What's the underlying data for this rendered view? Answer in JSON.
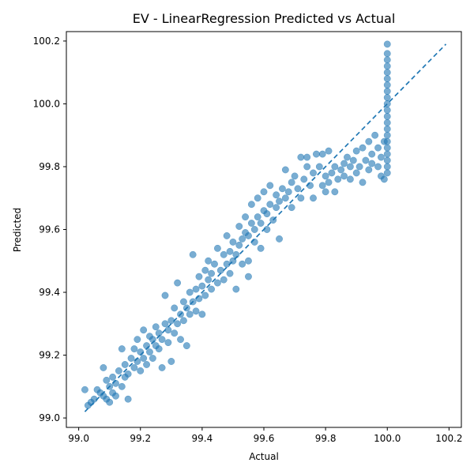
{
  "chart_data": {
    "type": "scatter",
    "title": "EV - LinearRegression Predicted vs Actual",
    "xlabel": "Actual",
    "ylabel": "Predicted",
    "xlim": [
      98.96,
      100.24
    ],
    "ylim": [
      98.97,
      100.23
    ],
    "xticks": [
      "99.0",
      "99.2",
      "99.4",
      "99.6",
      "99.8",
      "100.0",
      "100.2"
    ],
    "yticks": [
      "99.0",
      "99.2",
      "99.4",
      "99.6",
      "99.8",
      "100.0",
      "100.2"
    ],
    "grid": false,
    "colors": {
      "points": "#1f77b4",
      "reference_line": "#1f77b4"
    },
    "reference_line": {
      "style": "dashed",
      "from": [
        99.02,
        99.02
      ],
      "to": [
        100.19,
        100.19
      ]
    },
    "series": [
      {
        "points": [
          [
            99.02,
            99.09
          ],
          [
            99.03,
            99.04
          ],
          [
            99.04,
            99.05
          ],
          [
            99.05,
            99.06
          ],
          [
            99.06,
            99.09
          ],
          [
            99.07,
            99.08
          ],
          [
            99.08,
            99.07
          ],
          [
            99.08,
            99.16
          ],
          [
            99.09,
            99.06
          ],
          [
            99.09,
            99.12
          ],
          [
            99.1,
            99.05
          ],
          [
            99.1,
            99.1
          ],
          [
            99.11,
            99.08
          ],
          [
            99.11,
            99.13
          ],
          [
            99.12,
            99.07
          ],
          [
            99.12,
            99.11
          ],
          [
            99.13,
            99.15
          ],
          [
            99.14,
            99.1
          ],
          [
            99.14,
            99.22
          ],
          [
            99.15,
            99.13
          ],
          [
            99.15,
            99.17
          ],
          [
            99.16,
            99.06
          ],
          [
            99.16,
            99.14
          ],
          [
            99.17,
            99.19
          ],
          [
            99.18,
            99.16
          ],
          [
            99.18,
            99.22
          ],
          [
            99.19,
            99.18
          ],
          [
            99.19,
            99.25
          ],
          [
            99.2,
            99.15
          ],
          [
            99.2,
            99.21
          ],
          [
            99.21,
            99.19
          ],
          [
            99.21,
            99.28
          ],
          [
            99.22,
            99.17
          ],
          [
            99.22,
            99.23
          ],
          [
            99.23,
            99.21
          ],
          [
            99.23,
            99.26
          ],
          [
            99.24,
            99.19
          ],
          [
            99.24,
            99.25
          ],
          [
            99.25,
            99.23
          ],
          [
            99.25,
            99.29
          ],
          [
            99.26,
            99.22
          ],
          [
            99.26,
            99.27
          ],
          [
            99.27,
            99.16
          ],
          [
            99.27,
            99.25
          ],
          [
            99.28,
            99.3
          ],
          [
            99.28,
            99.39
          ],
          [
            99.29,
            99.24
          ],
          [
            99.29,
            99.28
          ],
          [
            99.3,
            99.18
          ],
          [
            99.3,
            99.31
          ],
          [
            99.31,
            99.27
          ],
          [
            99.31,
            99.35
          ],
          [
            99.32,
            99.3
          ],
          [
            99.32,
            99.43
          ],
          [
            99.33,
            99.25
          ],
          [
            99.33,
            99.33
          ],
          [
            99.34,
            99.31
          ],
          [
            99.34,
            99.37
          ],
          [
            99.35,
            99.23
          ],
          [
            99.35,
            99.35
          ],
          [
            99.36,
            99.33
          ],
          [
            99.36,
            99.4
          ],
          [
            99.37,
            99.52
          ],
          [
            99.37,
            99.37
          ],
          [
            99.38,
            99.34
          ],
          [
            99.38,
            99.41
          ],
          [
            99.39,
            99.38
          ],
          [
            99.39,
            99.45
          ],
          [
            99.4,
            99.33
          ],
          [
            99.4,
            99.42
          ],
          [
            99.41,
            99.39
          ],
          [
            99.41,
            99.47
          ],
          [
            99.42,
            99.44
          ],
          [
            99.42,
            99.5
          ],
          [
            99.43,
            99.41
          ],
          [
            99.43,
            99.46
          ],
          [
            99.44,
            99.49
          ],
          [
            99.45,
            99.43
          ],
          [
            99.45,
            99.54
          ],
          [
            99.46,
            99.47
          ],
          [
            99.47,
            99.44
          ],
          [
            99.47,
            99.52
          ],
          [
            99.48,
            99.49
          ],
          [
            99.48,
            99.58
          ],
          [
            99.49,
            99.46
          ],
          [
            99.49,
            99.53
          ],
          [
            99.5,
            99.5
          ],
          [
            99.5,
            99.56
          ],
          [
            99.51,
            99.41
          ],
          [
            99.51,
            99.52
          ],
          [
            99.52,
            99.55
          ],
          [
            99.52,
            99.61
          ],
          [
            99.53,
            99.49
          ],
          [
            99.53,
            99.57
          ],
          [
            99.54,
            99.59
          ],
          [
            99.54,
            99.64
          ],
          [
            99.55,
            99.45
          ],
          [
            99.55,
            99.5
          ],
          [
            99.55,
            99.58
          ],
          [
            99.56,
            99.62
          ],
          [
            99.56,
            99.68
          ],
          [
            99.57,
            99.56
          ],
          [
            99.57,
            99.6
          ],
          [
            99.58,
            99.64
          ],
          [
            99.58,
            99.7
          ],
          [
            99.59,
            99.54
          ],
          [
            99.59,
            99.62
          ],
          [
            99.6,
            99.66
          ],
          [
            99.6,
            99.72
          ],
          [
            99.61,
            99.6
          ],
          [
            99.61,
            99.65
          ],
          [
            99.62,
            99.68
          ],
          [
            99.62,
            99.74
          ],
          [
            99.63,
            99.63
          ],
          [
            99.64,
            99.67
          ],
          [
            99.64,
            99.71
          ],
          [
            99.65,
            99.57
          ],
          [
            99.65,
            99.69
          ],
          [
            99.66,
            99.73
          ],
          [
            99.67,
            99.79
          ],
          [
            99.67,
            99.7
          ],
          [
            99.68,
            99.72
          ],
          [
            99.69,
            99.67
          ],
          [
            99.69,
            99.75
          ],
          [
            99.7,
            99.77
          ],
          [
            99.71,
            99.73
          ],
          [
            99.72,
            99.83
          ],
          [
            99.72,
            99.7
          ],
          [
            99.73,
            99.76
          ],
          [
            99.74,
            99.8
          ],
          [
            99.74,
            99.83
          ],
          [
            99.75,
            99.74
          ],
          [
            99.76,
            99.7
          ],
          [
            99.76,
            99.78
          ],
          [
            99.77,
            99.84
          ],
          [
            99.78,
            99.8
          ],
          [
            99.79,
            99.74
          ],
          [
            99.79,
            99.84
          ],
          [
            99.8,
            99.72
          ],
          [
            99.8,
            99.77
          ],
          [
            99.81,
            99.75
          ],
          [
            99.81,
            99.85
          ],
          [
            99.82,
            99.78
          ],
          [
            99.83,
            99.72
          ],
          [
            99.83,
            99.8
          ],
          [
            99.84,
            99.76
          ],
          [
            99.85,
            99.79
          ],
          [
            99.86,
            99.81
          ],
          [
            99.86,
            99.77
          ],
          [
            99.87,
            99.83
          ],
          [
            99.88,
            99.76
          ],
          [
            99.88,
            99.8
          ],
          [
            99.89,
            99.82
          ],
          [
            99.9,
            99.78
          ],
          [
            99.9,
            99.85
          ],
          [
            99.91,
            99.8
          ],
          [
            99.92,
            99.75
          ],
          [
            99.92,
            99.86
          ],
          [
            99.93,
            99.82
          ],
          [
            99.94,
            99.79
          ],
          [
            99.94,
            99.88
          ],
          [
            99.95,
            99.81
          ],
          [
            99.95,
            99.84
          ],
          [
            99.96,
            99.9
          ],
          [
            99.97,
            99.8
          ],
          [
            99.97,
            99.86
          ],
          [
            99.98,
            99.77
          ],
          [
            99.98,
            99.83
          ],
          [
            99.99,
            99.88
          ],
          [
            99.99,
            99.76
          ],
          [
            100.0,
            99.78
          ],
          [
            100.0,
            99.8
          ],
          [
            100.0,
            99.82
          ],
          [
            100.0,
            99.84
          ],
          [
            100.0,
            99.86
          ],
          [
            100.0,
            99.88
          ],
          [
            100.0,
            99.9
          ],
          [
            100.0,
            99.92
          ],
          [
            100.0,
            99.94
          ],
          [
            100.0,
            99.96
          ],
          [
            100.0,
            99.98
          ],
          [
            100.0,
            100.0
          ],
          [
            100.0,
            100.02
          ],
          [
            100.0,
            100.04
          ],
          [
            100.0,
            100.06
          ],
          [
            100.0,
            100.08
          ],
          [
            100.0,
            100.1
          ],
          [
            100.0,
            100.12
          ],
          [
            100.0,
            100.14
          ],
          [
            100.0,
            100.16
          ],
          [
            100.0,
            100.19
          ]
        ]
      }
    ]
  }
}
